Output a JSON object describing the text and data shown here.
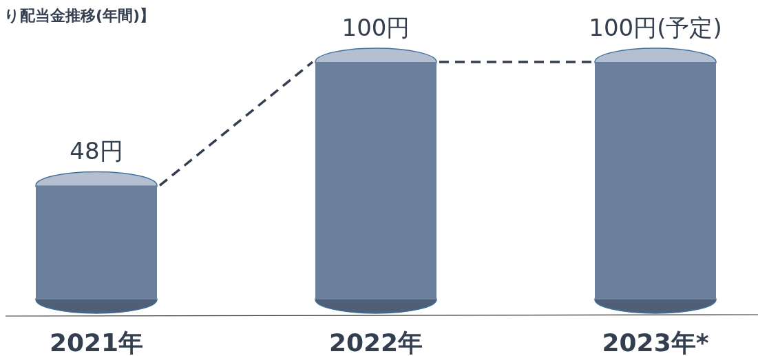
{
  "chart_data": {
    "type": "bar",
    "title": "り配当金推移(年間)】",
    "categories": [
      "2021年",
      "2022年",
      "2023年*"
    ],
    "color": "#6a7f9c",
    "values": [
      48,
      100,
      100
    ],
    "value_labels": [
      "48円",
      "100円",
      "100円(予定)"
    ]
  }
}
